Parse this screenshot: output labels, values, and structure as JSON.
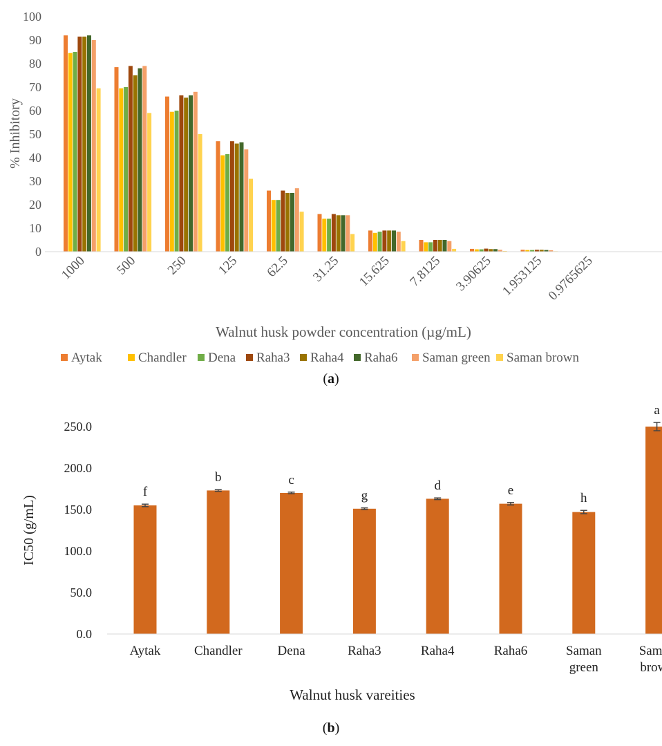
{
  "chart_data": [
    {
      "type": "bar",
      "panel_label": "a",
      "xlabel": "Walnut husk powder concentration (µg/mL)",
      "ylabel": "% Inhibitory",
      "ylim": [
        0,
        100
      ],
      "yticks": [
        0,
        10,
        20,
        30,
        40,
        50,
        60,
        70,
        80,
        90,
        100
      ],
      "grid": false,
      "legend_position": "bottom",
      "categories": [
        "1000",
        "500",
        "250",
        "125",
        "62.5",
        "31.25",
        "15.625",
        "7.8125",
        "3.90625",
        "1.953125",
        "0.9765625"
      ],
      "series": [
        {
          "name": "Aytak",
          "color": "#ED7D31",
          "values": [
            92,
            78.5,
            66,
            47,
            26,
            16,
            9,
            5,
            1.2,
            0.8,
            0
          ]
        },
        {
          "name": "Chandler",
          "color": "#FFC000",
          "values": [
            84.5,
            69.5,
            59.5,
            41,
            22,
            14,
            8,
            4,
            1,
            0.7,
            0
          ]
        },
        {
          "name": "Dena",
          "color": "#70AD47",
          "values": [
            85,
            70,
            60,
            41.5,
            22,
            14,
            8.5,
            4,
            1,
            0.7,
            0
          ]
        },
        {
          "name": "Raha3",
          "color": "#9E480E",
          "values": [
            91.5,
            79,
            66.5,
            47,
            26,
            16,
            9,
            5,
            1.3,
            0.8,
            0
          ]
        },
        {
          "name": "Raha4",
          "color": "#997300",
          "values": [
            91.5,
            75,
            65.5,
            46,
            25,
            15.5,
            9,
            5,
            1.1,
            0.8,
            0
          ]
        },
        {
          "name": "Raha6",
          "color": "#43682B",
          "values": [
            92,
            78,
            66.5,
            46.5,
            25,
            15.5,
            9,
            5,
            1.1,
            0.7,
            0
          ]
        },
        {
          "name": "Saman green",
          "color": "#F4A069",
          "values": [
            90,
            79,
            68,
            43.5,
            27,
            15.5,
            8.5,
            4.5,
            0.8,
            0.6,
            0
          ]
        },
        {
          "name": "Saman brown",
          "color": "#FFD34F",
          "values": [
            69.5,
            59,
            50,
            31,
            17,
            7.5,
            4.5,
            1.2,
            0.3,
            0.2,
            0
          ]
        }
      ]
    },
    {
      "type": "bar",
      "panel_label": "b",
      "xlabel": "Walnut husk vareities",
      "ylabel": "IC50 (g/mL)",
      "ylim": [
        0,
        250
      ],
      "yticks": [
        "0.0",
        "50.0",
        "100.0",
        "150.0",
        "200.0",
        "250.0"
      ],
      "grid": false,
      "color": "#D2691E",
      "categories": [
        "Aytak",
        "Chandler",
        "Dena",
        "Raha3",
        "Raha4",
        "Raha6",
        "Saman green",
        "Saman brown"
      ],
      "values": [
        155,
        173,
        170,
        151,
        163,
        157,
        147,
        250
      ],
      "errors": [
        1.5,
        1,
        1,
        1,
        1,
        1.5,
        2,
        5
      ],
      "annotations": [
        "f",
        "b",
        "c",
        "g",
        "d",
        "e",
        "h",
        "a"
      ]
    }
  ]
}
